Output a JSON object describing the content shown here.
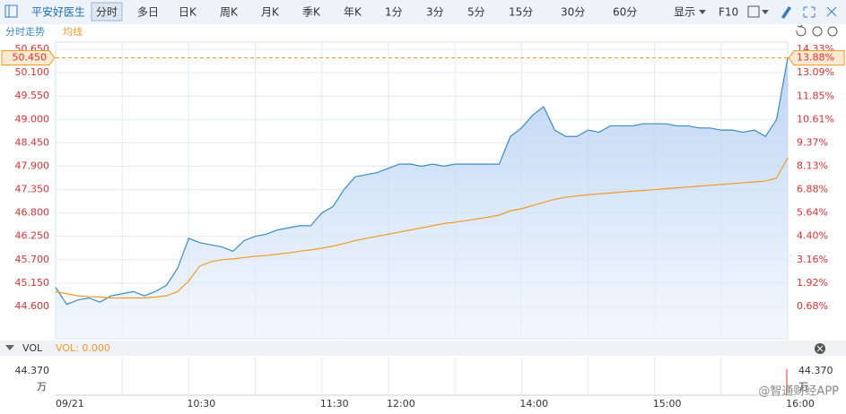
{
  "toolbar": {
    "stock": "平安好医生",
    "tabs": [
      "分时",
      "多日",
      "日K",
      "周K",
      "月K",
      "季K",
      "年K",
      "1分",
      "3分",
      "5分",
      "15分",
      "30分",
      "60分"
    ],
    "display": "显示",
    "f10": "F10"
  },
  "chart_data": {
    "type": "line",
    "categories": [
      "09/21",
      null,
      null,
      null,
      null,
      null,
      null,
      null,
      null,
      null,
      null,
      null,
      "10:30",
      null,
      null,
      null,
      null,
      null,
      null,
      null,
      null,
      null,
      null,
      null,
      "11:30",
      null,
      null,
      null,
      null,
      null,
      "12:00",
      null,
      null,
      null,
      null,
      null,
      null,
      null,
      null,
      null,
      null,
      null,
      "14:00",
      null,
      null,
      null,
      null,
      null,
      null,
      null,
      null,
      null,
      null,
      null,
      "15:00",
      null,
      null,
      null,
      null,
      null,
      null,
      null,
      null,
      null,
      null,
      null,
      "16:00"
    ],
    "series": [
      {
        "name": "分时走势",
        "color": "#3a8cc6",
        "values": [
          45.05,
          44.65,
          44.75,
          44.8,
          44.7,
          44.85,
          44.9,
          44.95,
          44.85,
          44.95,
          45.1,
          45.5,
          46.2,
          46.1,
          46.05,
          46.0,
          45.9,
          46.15,
          46.25,
          46.3,
          46.4,
          46.45,
          46.5,
          46.5,
          46.8,
          46.95,
          47.35,
          47.65,
          47.7,
          47.75,
          47.85,
          47.95,
          47.95,
          47.9,
          47.95,
          47.9,
          47.95,
          47.95,
          47.95,
          47.95,
          47.95,
          48.6,
          48.8,
          49.1,
          49.3,
          48.75,
          48.6,
          48.6,
          48.75,
          48.7,
          48.85,
          48.85,
          48.85,
          48.9,
          48.9,
          48.9,
          48.85,
          48.85,
          48.8,
          48.8,
          48.75,
          48.75,
          48.7,
          48.75,
          48.6,
          49.0,
          50.45
        ]
      },
      {
        "name": "均线",
        "color": "#f09a28",
        "values": [
          44.95,
          44.9,
          44.85,
          44.83,
          44.82,
          44.8,
          44.8,
          44.8,
          44.8,
          44.82,
          44.85,
          44.95,
          45.2,
          45.55,
          45.65,
          45.7,
          45.72,
          45.75,
          45.78,
          45.8,
          45.83,
          45.86,
          45.9,
          45.93,
          45.97,
          46.02,
          46.08,
          46.15,
          46.2,
          46.25,
          46.3,
          46.35,
          46.4,
          46.45,
          46.5,
          46.55,
          46.58,
          46.62,
          46.66,
          46.7,
          46.75,
          46.85,
          46.9,
          46.97,
          47.05,
          47.12,
          47.17,
          47.2,
          47.23,
          47.25,
          47.27,
          47.29,
          47.31,
          47.33,
          47.35,
          47.37,
          47.39,
          47.41,
          47.43,
          47.45,
          47.47,
          47.49,
          47.51,
          47.53,
          47.55,
          47.62,
          48.1
        ]
      }
    ],
    "ylim": [
      43.84,
      50.82
    ],
    "yticks": [
      {
        "value": 44.6,
        "label": "44.600"
      },
      {
        "value": 45.15,
        "label": "45.150"
      },
      {
        "value": 45.7,
        "label": "45.700"
      },
      {
        "value": 46.25,
        "label": "46.250"
      },
      {
        "value": 46.8,
        "label": "46.800"
      },
      {
        "value": 47.35,
        "label": "47.350"
      },
      {
        "value": 47.9,
        "label": "47.900"
      },
      {
        "value": 48.45,
        "label": "48.450"
      },
      {
        "value": 49.0,
        "label": "49.000"
      },
      {
        "value": 49.55,
        "label": "49.550"
      },
      {
        "value": 50.1,
        "label": "50.100"
      },
      {
        "value": 50.65,
        "label": "50.650"
      }
    ],
    "y2lim": [
      -1.04,
      14.72
    ],
    "y2ticks": [
      {
        "value": 0.68,
        "label": "0.68%"
      },
      {
        "value": 1.92,
        "label": "1.92%"
      },
      {
        "value": 3.16,
        "label": "3.16%"
      },
      {
        "value": 4.4,
        "label": "4.40%"
      },
      {
        "value": 5.64,
        "label": "5.64%"
      },
      {
        "value": 6.88,
        "label": "6.88%"
      },
      {
        "value": 8.13,
        "label": "8.13%"
      },
      {
        "value": 9.37,
        "label": "9.37%"
      },
      {
        "value": 10.61,
        "label": "10.61%"
      },
      {
        "value": 11.85,
        "label": "11.85%"
      },
      {
        "value": 13.09,
        "label": "13.09%"
      },
      {
        "value": 14.33,
        "label": "14.33%"
      }
    ],
    "last_price": {
      "value": 50.45,
      "label": "50.450"
    },
    "last_change": {
      "value": 13.88,
      "label": "13.88%"
    },
    "grid": true
  },
  "volume": {
    "title": "VOL",
    "label": "VOL: 0.000",
    "max_label": "44.370",
    "unit": "万"
  },
  "watermark": "@智通财经APP"
}
